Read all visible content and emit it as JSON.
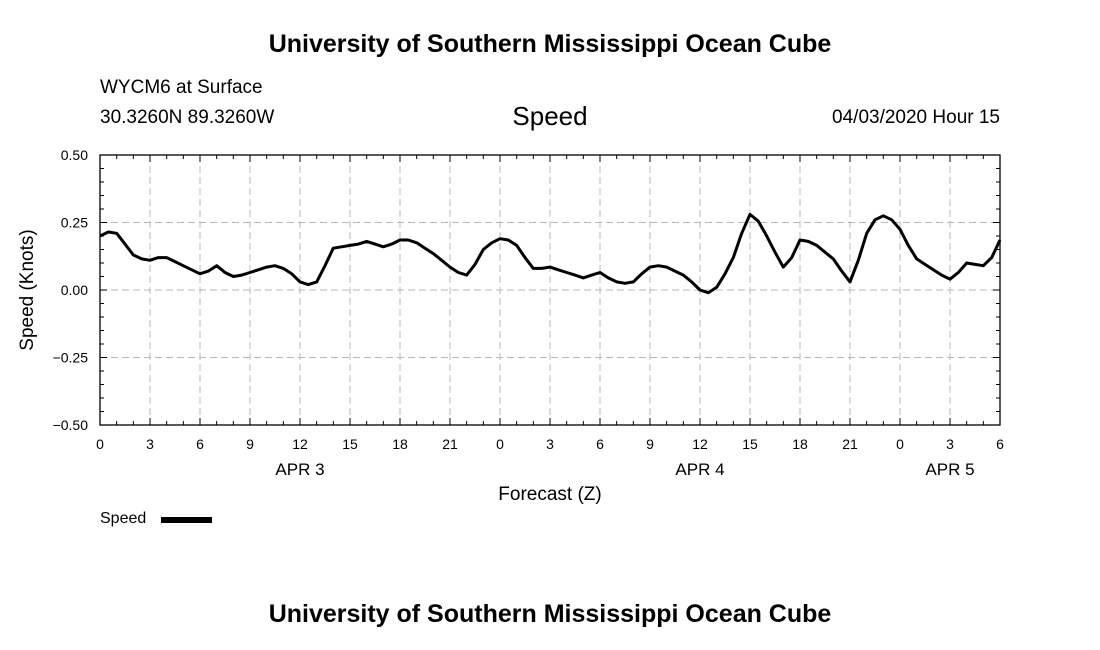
{
  "header": {
    "title": "University of Southern Mississippi Ocean Cube",
    "station": "WYCM6 at Surface",
    "coords": "30.3260N 89.3260W",
    "variable": "Speed",
    "datetime": "04/03/2020 Hour 15"
  },
  "footer": {
    "title": "University of Southern Mississippi Ocean Cube"
  },
  "legend": {
    "label": "Speed"
  },
  "chart_data": {
    "type": "line",
    "title": "Speed",
    "xlabel": "Forecast (Z)",
    "ylabel": "Speed (Knots)",
    "xlim": [
      0,
      54
    ],
    "ylim": [
      -0.5,
      0.5
    ],
    "x_ticks": [
      {
        "hour": 0,
        "label": "0"
      },
      {
        "hour": 3,
        "label": "3"
      },
      {
        "hour": 6,
        "label": "6"
      },
      {
        "hour": 9,
        "label": "9"
      },
      {
        "hour": 12,
        "label": "12"
      },
      {
        "hour": 15,
        "label": "15"
      },
      {
        "hour": 18,
        "label": "18"
      },
      {
        "hour": 21,
        "label": "21"
      },
      {
        "hour": 24,
        "label": "0"
      },
      {
        "hour": 27,
        "label": "3"
      },
      {
        "hour": 30,
        "label": "6"
      },
      {
        "hour": 33,
        "label": "9"
      },
      {
        "hour": 36,
        "label": "12"
      },
      {
        "hour": 39,
        "label": "15"
      },
      {
        "hour": 42,
        "label": "18"
      },
      {
        "hour": 45,
        "label": "21"
      },
      {
        "hour": 48,
        "label": "0"
      },
      {
        "hour": 51,
        "label": "3"
      },
      {
        "hour": 54,
        "label": "6"
      }
    ],
    "y_ticks": [
      {
        "value": 0.5,
        "label": "0.50"
      },
      {
        "value": 0.25,
        "label": "0.25"
      },
      {
        "value": 0.0,
        "label": "0.00"
      },
      {
        "value": -0.25,
        "label": "−0.25"
      },
      {
        "value": -0.5,
        "label": "−0.50"
      }
    ],
    "day_labels": [
      {
        "hour": 12,
        "label": "APR 3"
      },
      {
        "hour": 36,
        "label": "APR 4"
      },
      {
        "hour": 51,
        "label": "APR 5"
      }
    ],
    "grid": true,
    "series": [
      {
        "name": "Speed",
        "color": "#000000",
        "x": [
          0,
          0.5,
          1,
          1.5,
          2,
          2.5,
          3,
          3.5,
          4,
          4.5,
          5,
          5.5,
          6,
          6.5,
          7,
          7.5,
          8,
          8.5,
          9,
          9.5,
          10,
          10.5,
          11,
          11.5,
          12,
          12.5,
          13,
          13.5,
          14,
          14.5,
          15,
          15.5,
          16,
          16.5,
          17,
          17.5,
          18,
          18.5,
          19,
          19.5,
          20,
          20.5,
          21,
          21.5,
          22,
          22.5,
          23,
          23.5,
          24,
          24.5,
          25,
          25.5,
          26,
          26.5,
          27,
          27.5,
          28,
          28.5,
          29,
          29.5,
          30,
          30.5,
          31,
          31.5,
          32,
          32.5,
          33,
          33.5,
          34,
          34.5,
          35,
          35.5,
          36,
          36.5,
          37,
          37.5,
          38,
          38.5,
          39,
          39.5,
          40,
          40.5,
          41,
          41.5,
          42,
          42.5,
          43,
          43.5,
          44,
          44.5,
          45,
          45.5,
          46,
          46.5,
          47,
          47.5,
          48,
          48.5,
          49,
          49.5,
          50,
          50.5,
          51,
          51.5,
          52,
          52.5,
          53,
          53.5,
          54
        ],
        "values": [
          0.2,
          0.215,
          0.21,
          0.17,
          0.13,
          0.115,
          0.11,
          0.12,
          0.12,
          0.105,
          0.09,
          0.075,
          0.06,
          0.07,
          0.09,
          0.065,
          0.05,
          0.055,
          0.065,
          0.075,
          0.085,
          0.09,
          0.08,
          0.06,
          0.03,
          0.02,
          0.03,
          0.09,
          0.155,
          0.16,
          0.165,
          0.17,
          0.18,
          0.17,
          0.16,
          0.17,
          0.185,
          0.185,
          0.175,
          0.155,
          0.135,
          0.11,
          0.085,
          0.065,
          0.055,
          0.095,
          0.15,
          0.175,
          0.19,
          0.185,
          0.165,
          0.12,
          0.08,
          0.08,
          0.085,
          0.075,
          0.065,
          0.055,
          0.045,
          0.055,
          0.065,
          0.045,
          0.03,
          0.025,
          0.03,
          0.06,
          0.085,
          0.09,
          0.085,
          0.07,
          0.055,
          0.03,
          0.0,
          -0.01,
          0.01,
          0.06,
          0.12,
          0.21,
          0.28,
          0.255,
          0.2,
          0.14,
          0.085,
          0.12,
          0.185,
          0.18,
          0.165,
          0.14,
          0.115,
          0.07,
          0.03,
          0.11,
          0.21,
          0.26,
          0.275,
          0.26,
          0.225,
          0.165,
          0.115,
          0.095,
          0.075,
          0.055,
          0.04,
          0.065,
          0.1,
          0.095,
          0.09,
          0.12,
          0.185
        ]
      }
    ]
  }
}
